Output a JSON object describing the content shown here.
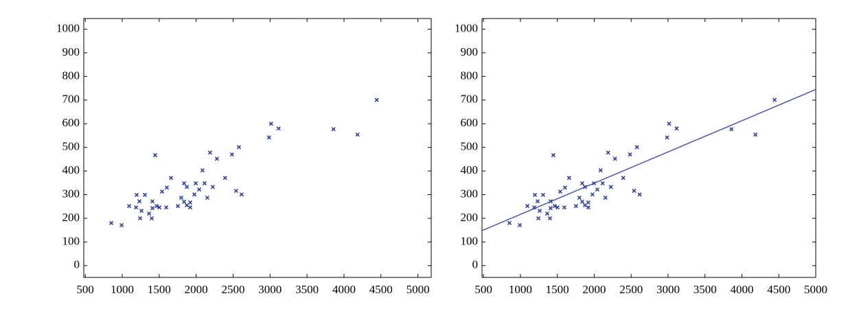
{
  "chart_data": [
    {
      "type": "scatter",
      "x": [
        852,
        992,
        1094,
        1196,
        1187,
        1233,
        1243,
        1261,
        1307,
        1363,
        1400,
        1409,
        1409,
        1465,
        1446,
        1502,
        1539,
        1595,
        1604,
        1660,
        1753,
        1799,
        1837,
        1837,
        1874,
        1874,
        1920,
        1920,
        1976,
        1995,
        2041,
        2086,
        2114,
        2151,
        2188,
        2225,
        2281,
        2392,
        2485,
        2540,
        2578,
        2615,
        2986,
        3014,
        3116,
        3858,
        4183,
        4443
      ],
      "values": [
        180,
        171,
        252,
        299,
        246,
        272,
        200,
        232,
        299,
        220,
        200,
        243,
        272,
        252,
        467,
        246,
        313,
        246,
        330,
        371,
        252,
        287,
        348,
        270,
        333,
        255,
        246,
        267,
        301,
        348,
        322,
        403,
        348,
        287,
        478,
        333,
        452,
        371,
        470,
        316,
        501,
        301,
        542,
        600,
        580,
        577,
        554,
        701
      ],
      "color": "#2f3f96",
      "xlim": [
        480,
        5180
      ],
      "ylim": [
        -50,
        1045
      ],
      "xticks": [
        500,
        1000,
        1500,
        2000,
        2500,
        3000,
        3500,
        4000,
        4500,
        5000
      ],
      "yticks": [
        0,
        100,
        200,
        300,
        400,
        500,
        600,
        700,
        800,
        900,
        1000
      ]
    },
    {
      "type": "scatter",
      "x": [
        852,
        992,
        1094,
        1196,
        1187,
        1233,
        1243,
        1261,
        1307,
        1363,
        1400,
        1409,
        1409,
        1465,
        1446,
        1502,
        1539,
        1595,
        1604,
        1660,
        1753,
        1799,
        1837,
        1837,
        1874,
        1874,
        1920,
        1920,
        1976,
        1995,
        2041,
        2086,
        2114,
        2151,
        2188,
        2225,
        2281,
        2392,
        2485,
        2540,
        2578,
        2615,
        2986,
        3014,
        3116,
        3858,
        4183,
        4443
      ],
      "values": [
        180,
        171,
        252,
        299,
        246,
        272,
        200,
        232,
        299,
        220,
        200,
        243,
        272,
        252,
        467,
        246,
        313,
        246,
        330,
        371,
        252,
        287,
        348,
        270,
        333,
        255,
        246,
        267,
        301,
        348,
        322,
        403,
        348,
        287,
        478,
        333,
        452,
        371,
        470,
        316,
        501,
        301,
        542,
        600,
        580,
        577,
        554,
        701
      ],
      "color": "#2f3f96",
      "fit": {
        "x": [
          480,
          5000
        ],
        "values": [
          148,
          745
        ],
        "color": "#4a58a6"
      },
      "xlim": [
        480,
        5000
      ],
      "ylim": [
        -50,
        1045
      ],
      "xticks": [
        500,
        1000,
        1500,
        2000,
        2500,
        3000,
        3500,
        4000,
        4500,
        5000
      ],
      "yticks": [
        0,
        100,
        200,
        300,
        400,
        500,
        600,
        700,
        800,
        900,
        1000
      ]
    }
  ]
}
